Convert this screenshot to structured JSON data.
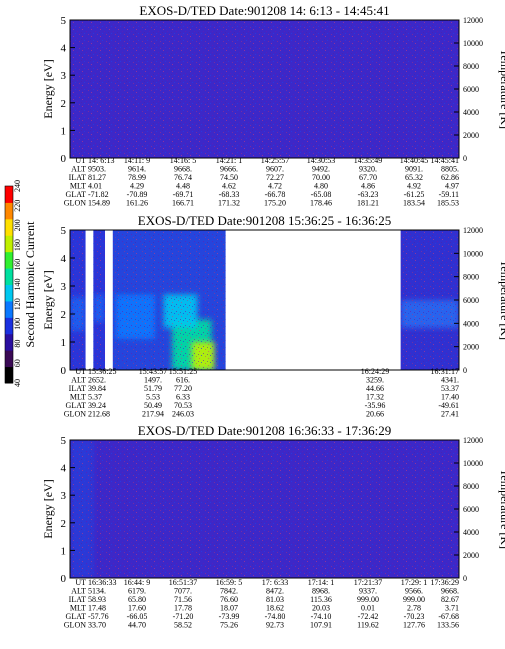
{
  "panels": [
    {
      "title": "EXOS-D/TED   Date:901208  14: 6:13 - 14:45:41",
      "ylabel": "Energy [eV]",
      "y2label": "Temperature [K]",
      "table": {
        "row_labels": [
          "UT",
          "ALT",
          "ILAT",
          "MLT",
          "GLAT",
          "GLON"
        ],
        "columns": [
          [
            "14: 6:13",
            "9503.",
            "81.27",
            "4.01",
            "-71.82",
            "154.89"
          ],
          [
            "14:11: 9",
            "9614.",
            "78.99",
            "4.29",
            "-70.89",
            "161.26"
          ],
          [
            "14:16: 5",
            "9668.",
            "76.74",
            "4.48",
            "-69.71",
            "166.71"
          ],
          [
            "14:21: 1",
            "9666.",
            "74.50",
            "4.62",
            "-68.33",
            "171.32"
          ],
          [
            "14:25:57",
            "9607.",
            "72.27",
            "4.72",
            "-66.78",
            "175.20"
          ],
          [
            "14:30:53",
            "9492.",
            "70.00",
            "4.80",
            "-65.08",
            "178.46"
          ],
          [
            "14:35:49",
            "9320.",
            "67.70",
            "4.86",
            "-63.23",
            "181.21"
          ],
          [
            "14:40:45",
            "9091.",
            "65.32",
            "4.92",
            "-61.25",
            "183.54"
          ],
          [
            "14:45:41",
            "8805.",
            "62.86",
            "4.97",
            "-59.11",
            "185.53"
          ]
        ]
      }
    },
    {
      "title": "EXOS-D/TED   Date:901208  15:36:25 - 16:36:25",
      "ylabel": "Energy [eV]",
      "y2label": "Temperature [K]",
      "table": {
        "row_labels": [
          "UT",
          "ALT",
          "ILAT",
          "MLT",
          "GLAT",
          "GLON"
        ],
        "columns": [
          [
            "15:36:25",
            "2652.",
            "39.84",
            "5.37",
            "39.24",
            "212.68"
          ],
          [
            "15:43:57",
            "1497.",
            "51.79",
            "5.53",
            "50.49",
            "217.94"
          ],
          [
            "15:51:25",
            "616.",
            "77.20",
            "6.33",
            "70.53",
            "246.03"
          ],
          [
            "16:24:29",
            "3259.",
            "44.66",
            "17.32",
            "-35.96",
            "20.66"
          ],
          [
            "16:31:17",
            "4341.",
            "53.37",
            "17.40",
            "-49.61",
            "27.41"
          ]
        ]
      }
    },
    {
      "title": "EXOS-D/TED   Date:901208  16:36:33 - 17:36:29",
      "ylabel": "Energy [eV]",
      "y2label": "Temperature [K]",
      "table": {
        "row_labels": [
          "UT",
          "ALT",
          "ILAT",
          "MLT",
          "GLAT",
          "GLON"
        ],
        "columns": [
          [
            "16:36:33",
            "5134.",
            "58.93",
            "17.48",
            "-57.76",
            "33.70"
          ],
          [
            "16:44: 9",
            "6179.",
            "65.80",
            "17.60",
            "-66.05",
            "44.70"
          ],
          [
            "16:51:37",
            "7077.",
            "71.56",
            "17.78",
            "-71.20",
            "58.52"
          ],
          [
            "16:59: 5",
            "7842.",
            "76.60",
            "18.07",
            "-73.99",
            "75.26"
          ],
          [
            "17: 6:33",
            "8472.",
            "81.03",
            "18.62",
            "-74.80",
            "92.73"
          ],
          [
            "17:14: 1",
            "8968.",
            "115.36",
            "20.03",
            "-74.10",
            "107.91"
          ],
          [
            "17:21:37",
            "9337.",
            "999.00",
            "0.01",
            "-72.42",
            "119.62"
          ],
          [
            "17:29: 1",
            "9566.",
            "999.00",
            "2.78",
            "-70.23",
            "127.76"
          ],
          [
            "17:36:29",
            "9668.",
            "82.67",
            "3.71",
            "-67.68",
            "133.56"
          ]
        ]
      }
    }
  ],
  "colorbar": {
    "label": "Second Harmonic Current",
    "ticks": [
      "40",
      "60",
      "80",
      "100",
      "120",
      "140",
      "160",
      "180",
      "200",
      "220",
      "240"
    ],
    "range": [
      40,
      240
    ],
    "colors": [
      "#000000",
      "#3a0a55",
      "#2a0fa0",
      "#1a30e0",
      "#0a78ff",
      "#00c8f0",
      "#00e0a0",
      "#30f030",
      "#c0f000",
      "#ffe000",
      "#ff8800",
      "#ff0000"
    ]
  },
  "chart_data": [
    {
      "type": "heatmap",
      "title": "EXOS-D/TED   Date:901208  14: 6:13 - 14:45:41",
      "xlabel": "UT",
      "ylabel": "Energy [eV]",
      "y2label": "Temperature [K]",
      "x_ticks": [
        "14: 6:13",
        "14:11: 9",
        "14:16: 5",
        "14:21: 1",
        "14:25:57",
        "14:30:53",
        "14:35:49",
        "14:40:45",
        "14:45:41"
      ],
      "ylim": [
        0,
        5
      ],
      "y_ticks": [
        0,
        1,
        2,
        3,
        4,
        5
      ],
      "y2lim": [
        0,
        12000
      ],
      "y2_ticks": [
        0,
        2000,
        4000,
        6000,
        8000,
        10000,
        12000
      ],
      "data_segments": [
        {
          "x_start": 0.0,
          "x_end": 1.0,
          "background": "#3c28c8",
          "blobs": []
        }
      ]
    },
    {
      "type": "heatmap",
      "title": "EXOS-D/TED   Date:901208  15:36:25 - 16:36:25",
      "xlabel": "UT",
      "ylabel": "Energy [eV]",
      "y2label": "Temperature [K]",
      "x_ticks": [
        "15:36:25",
        "15:43:57",
        "15:51:25",
        "16:24:29",
        "16:31:17"
      ],
      "ylim": [
        0,
        5
      ],
      "y_ticks": [
        0,
        1,
        2,
        3,
        4,
        5
      ],
      "y2lim": [
        0,
        12000
      ],
      "y2_ticks": [
        0,
        2000,
        4000,
        6000,
        8000,
        10000,
        12000
      ],
      "data_segments": [
        {
          "x_start": 0.0,
          "x_end": 0.04,
          "background": "#2a35d8",
          "blobs": [
            {
              "x": 0.5,
              "y": 2.0,
              "w": 1.0,
              "h": 1.2,
              "color": "#1a60f0"
            }
          ]
        },
        {
          "x_start": 0.06,
          "x_end": 0.09,
          "background": "#2a35d8",
          "blobs": [
            {
              "x": 0.5,
              "y": 2.2,
              "w": 1.0,
              "h": 1.0,
              "color": "#1a60f0"
            }
          ]
        },
        {
          "x_start": 0.11,
          "x_end": 0.4,
          "background": "#2545dc",
          "blobs": [
            {
              "x": 0.2,
              "y": 1.9,
              "w": 0.35,
              "h": 1.6,
              "color": "#0a78ff"
            },
            {
              "x": 0.7,
              "y": 0.9,
              "w": 0.35,
              "h": 1.8,
              "color": "#00e0a0"
            },
            {
              "x": 0.8,
              "y": 0.5,
              "w": 0.2,
              "h": 1.0,
              "color": "#c0f000"
            },
            {
              "x": 0.6,
              "y": 2.1,
              "w": 0.3,
              "h": 1.2,
              "color": "#00c8f0"
            }
          ]
        },
        {
          "x_start": 0.85,
          "x_end": 1.0,
          "background": "#3030d0",
          "blobs": [
            {
              "x": 0.5,
              "y": 2.0,
              "w": 1.0,
              "h": 1.0,
              "color": "#2a6af0"
            }
          ]
        }
      ]
    },
    {
      "type": "heatmap",
      "title": "EXOS-D/TED   Date:901208  16:36:33 - 17:36:29",
      "xlabel": "UT",
      "ylabel": "Energy [eV]",
      "y2label": "Temperature [K]",
      "x_ticks": [
        "16:36:33",
        "16:44: 9",
        "16:51:37",
        "16:59: 5",
        "17: 6:33",
        "17:14: 1",
        "17:21:37",
        "17:29: 1",
        "17:36:29"
      ],
      "ylim": [
        0,
        5
      ],
      "y_ticks": [
        0,
        1,
        2,
        3,
        4,
        5
      ],
      "y2lim": [
        0,
        12000
      ],
      "y2_ticks": [
        0,
        2000,
        4000,
        6000,
        8000,
        10000,
        12000
      ],
      "data_segments": [
        {
          "x_start": 0.0,
          "x_end": 1.0,
          "background": "#3c28c8",
          "blobs": [
            {
              "x": 0.03,
              "y": 2.5,
              "w": 0.06,
              "h": 5.0,
              "color": "#2a3ad8"
            }
          ]
        }
      ]
    }
  ]
}
